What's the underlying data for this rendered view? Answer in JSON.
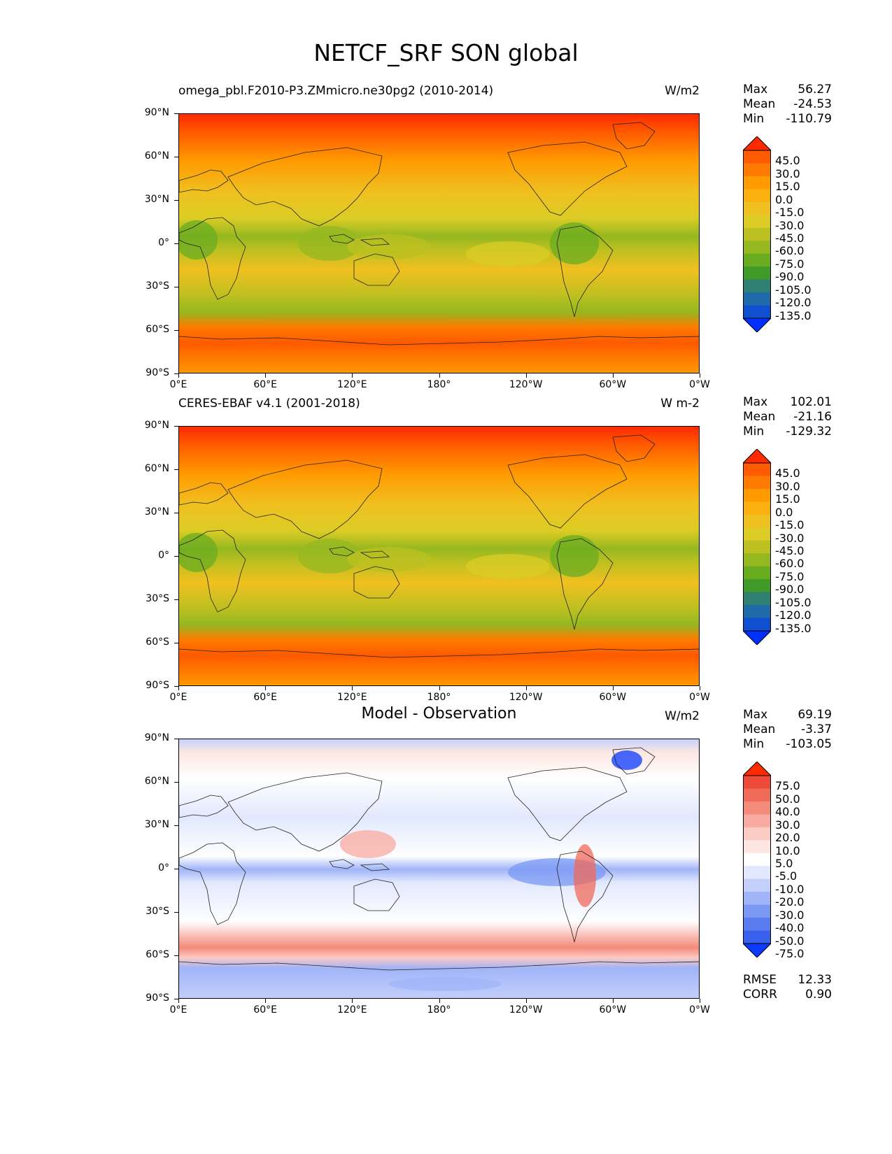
{
  "page_title": "NETCF_SRF SON global",
  "panels": [
    {
      "title_left": "omega_pbl.F2010-P3.ZMmicro.ne30pg2 (2010-2014)",
      "title_center": "",
      "units": "W/m2",
      "stats": {
        "max_label": "Max",
        "max": "56.27",
        "mean_label": "Mean",
        "mean": "-24.53",
        "min_label": "Min",
        "min": "-110.79"
      },
      "colorbar_labels": [
        "45.0",
        "30.0",
        "15.0",
        "0.0",
        "-15.0",
        "-30.0",
        "-45.0",
        "-60.0",
        "-75.0",
        "-90.0",
        "-105.0",
        "-120.0",
        "-135.0"
      ],
      "colorbar_colors": [
        "#ff2a00",
        "#ff5a00",
        "#ff7a00",
        "#ff9a00",
        "#fbb010",
        "#f0c020",
        "#dccc25",
        "#bcc020",
        "#95b820",
        "#6aac20",
        "#3f9a28",
        "#2f8070",
        "#1f6aa8",
        "#1050d0",
        "#0030ff"
      ]
    },
    {
      "title_left": "CERES-EBAF v4.1 (2001-2018)",
      "title_center": "",
      "units": "W m-2",
      "stats": {
        "max_label": "Max",
        "max": "102.01",
        "mean_label": "Mean",
        "mean": "-21.16",
        "min_label": "Min",
        "min": "-129.32"
      },
      "colorbar_labels": [
        "45.0",
        "30.0",
        "15.0",
        "0.0",
        "-15.0",
        "-30.0",
        "-45.0",
        "-60.0",
        "-75.0",
        "-90.0",
        "-105.0",
        "-120.0",
        "-135.0"
      ],
      "colorbar_colors": [
        "#ff2a00",
        "#ff5a00",
        "#ff7a00",
        "#ff9a00",
        "#fbb010",
        "#f0c020",
        "#dccc25",
        "#bcc020",
        "#95b820",
        "#6aac20",
        "#3f9a28",
        "#2f8070",
        "#1f6aa8",
        "#1050d0",
        "#0030ff"
      ]
    },
    {
      "title_left": "",
      "title_center": "Model - Observation",
      "units": "W/m2",
      "stats": {
        "max_label": "Max",
        "max": "69.19",
        "mean_label": "Mean",
        "mean": "-3.37",
        "min_label": "Min",
        "min": "-103.05"
      },
      "colorbar_labels": [
        "75.0",
        "50.0",
        "40.0",
        "30.0",
        "20.0",
        "10.0",
        "5.0",
        "-5.0",
        "-10.0",
        "-20.0",
        "-30.0",
        "-40.0",
        "-50.0",
        "-75.0"
      ],
      "colorbar_colors": [
        "#ff2a00",
        "#ee4a3a",
        "#f06a5a",
        "#f48a7a",
        "#f8aaa0",
        "#fbcac4",
        "#fde6e2",
        "#ffffff",
        "#e2e8fd",
        "#c4d0fb",
        "#a0b4f8",
        "#7a98f4",
        "#5a7cf0",
        "#3a60ee",
        "#0a3aff"
      ],
      "rmse_label": "RMSE",
      "rmse": "12.33",
      "corr_label": "CORR",
      "corr": "0.90"
    }
  ],
  "lat_ticks": [
    "90°N",
    "60°N",
    "30°N",
    "0°",
    "30°S",
    "60°S",
    "90°S"
  ],
  "lon_ticks": [
    "0°E",
    "60°E",
    "120°E",
    "180°",
    "120°W",
    "60°W",
    "0°W"
  ]
}
